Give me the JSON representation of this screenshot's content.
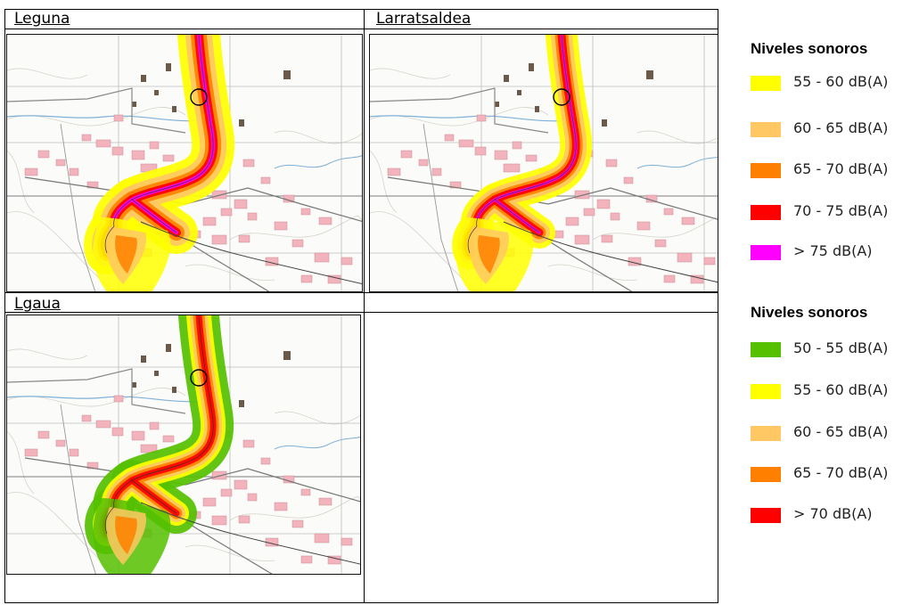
{
  "panels": [
    {
      "title": "Leguna",
      "scheme": "A"
    },
    {
      "title": "Larratsaldea",
      "scheme": "B"
    },
    {
      "title": "Lgaua",
      "scheme": "C"
    }
  ],
  "legend_top": {
    "title": "Niveles sonoros",
    "items": [
      {
        "label": "55 - 60 dB(A)",
        "color": "#ffff00"
      },
      {
        "label": "60 - 65 dB(A)",
        "color": "#ffc864"
      },
      {
        "label": "65 - 70 dB(A)",
        "color": "#ff8000"
      },
      {
        "label": "70 - 75 dB(A)",
        "color": "#ff0000"
      },
      {
        "label": "> 75 dB(A)",
        "color": "#ff00ff"
      }
    ]
  },
  "legend_bottom": {
    "title": "Niveles sonoros",
    "items": [
      {
        "label": "50 - 55 dB(A)",
        "color": "#55c000"
      },
      {
        "label": "55 - 60 dB(A)",
        "color": "#ffff00"
      },
      {
        "label": "60 - 65 dB(A)",
        "color": "#ffc864"
      },
      {
        "label": "65 - 70 dB(A)",
        "color": "#ff8000"
      },
      {
        "label": "> 70 dB(A)",
        "color": "#ff0000"
      }
    ]
  }
}
